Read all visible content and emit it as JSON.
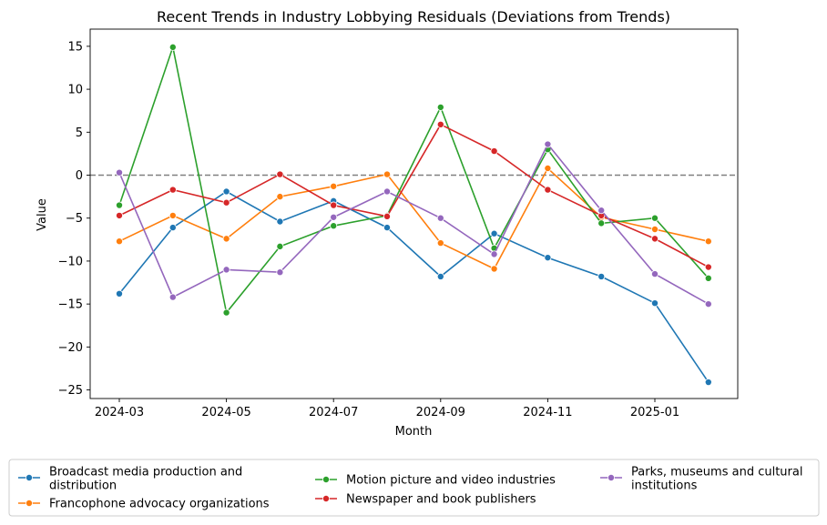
{
  "chart_data": {
    "type": "line",
    "title": "Recent Trends in Industry Lobbying Residuals (Deviations from Trends)",
    "xlabel": "Month",
    "ylabel": "Value",
    "x": [
      "2024-03",
      "2024-04",
      "2024-05",
      "2024-06",
      "2024-07",
      "2024-08",
      "2024-09",
      "2024-10",
      "2024-11",
      "2024-12",
      "2025-01",
      "2025-02"
    ],
    "x_ticks": [
      "2024-03",
      "2024-05",
      "2024-07",
      "2024-09",
      "2024-11",
      "2025-01"
    ],
    "ylim": [
      -26,
      17
    ],
    "y_ticks": [
      15,
      10,
      5,
      0,
      -5,
      -10,
      -15,
      -20,
      -25
    ],
    "y_tick_labels": [
      "15",
      "10",
      "5",
      "0",
      "−5",
      "−10",
      "−15",
      "−20",
      "−25"
    ],
    "reference_line": {
      "y": 0,
      "style": "dashed",
      "color": "#808080"
    },
    "grid": false,
    "legend_position": "bottom",
    "series": [
      {
        "name": "Broadcast media production and distribution",
        "name_lines": [
          "Broadcast media production and",
          "distribution"
        ],
        "color": "#1f77b4",
        "values": [
          -13.8,
          -6.1,
          -1.9,
          -5.4,
          -3.0,
          -6.1,
          -11.8,
          -6.8,
          -9.6,
          -11.8,
          -14.9,
          -24.1
        ]
      },
      {
        "name": "Francophone advocacy organizations",
        "name_lines": [
          "Francophone advocacy organizations"
        ],
        "color": "#ff7f0e",
        "values": [
          -7.7,
          -4.7,
          -7.4,
          -2.5,
          -1.3,
          0.1,
          -7.9,
          -10.9,
          0.8,
          -4.9,
          -6.3,
          -7.7
        ]
      },
      {
        "name": "Motion picture and video industries",
        "name_lines": [
          "Motion picture and video industries"
        ],
        "color": "#2ca02c",
        "values": [
          -3.5,
          14.9,
          -16.0,
          -8.3,
          -5.9,
          -4.7,
          7.9,
          -8.5,
          3.0,
          -5.6,
          -5.0,
          -12.0
        ]
      },
      {
        "name": "Newspaper and book publishers",
        "name_lines": [
          "Newspaper and book publishers"
        ],
        "color": "#d62728",
        "values": [
          -4.7,
          -1.7,
          -3.2,
          0.1,
          -3.5,
          -4.8,
          5.9,
          2.8,
          -1.7,
          -4.7,
          -7.4,
          -10.7
        ]
      },
      {
        "name": "Parks, museums and cultural institutions",
        "name_lines": [
          "Parks, museums and cultural",
          "institutions"
        ],
        "color": "#9467bd",
        "values": [
          0.3,
          -14.2,
          -11.0,
          -11.3,
          -4.9,
          -1.9,
          -5.0,
          -9.2,
          3.6,
          -4.1,
          -11.5,
          -15.0
        ]
      }
    ]
  }
}
